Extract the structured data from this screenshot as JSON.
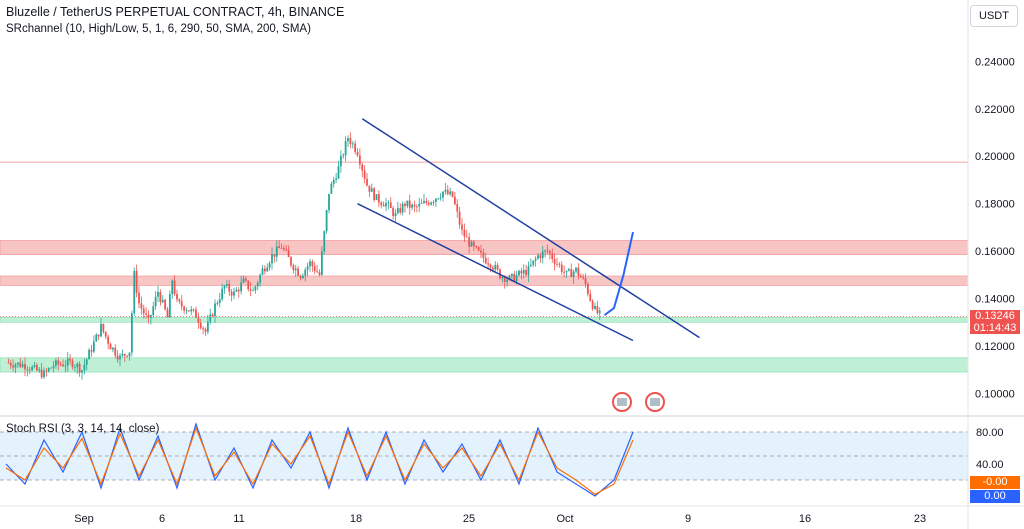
{
  "header": {
    "title": "Bluzelle / TetherUS PERPETUAL CONTRACT, 4h, BINANCE",
    "indicator": "SRchannel (10, High/Low, 5, 1, 6, 290, 50, SMA, 200, SMA)",
    "currency": "USDT"
  },
  "price_tag": {
    "price": "0.13246",
    "countdown": "01:14:43"
  },
  "rsi_panel": {
    "title": "Stoch RSI (3, 3, 14, 14, close)",
    "k_value": "-0.00",
    "d_value": "0.00"
  },
  "colors": {
    "up": "#26a69a",
    "down": "#ef5350",
    "trendline": "#1e3fa0",
    "k_line": "#2962ff",
    "d_line": "#ff6d00",
    "resistance_zone": "#f8c5c5",
    "support_zone": "#bff0d6",
    "rsi_band": "#e3f2fd"
  },
  "chart_data": [
    {
      "type": "candlestick",
      "title": "Bluzelle / TetherUS PERPETUAL CONTRACT, 4h, BINANCE",
      "x_ticks": [
        "Sep",
        "6",
        "11",
        "18",
        "25",
        "Oct",
        "9",
        "16",
        "23"
      ],
      "y_ticks": [
        "0.24000",
        "0.22000",
        "0.20000",
        "0.18000",
        "0.16000",
        "0.14000",
        "0.12000",
        "0.10000"
      ],
      "ylim": [
        0.093,
        0.249
      ],
      "last_price": 0.13246,
      "close_path": [
        [
          0,
          0.113
        ],
        [
          2,
          0.112
        ],
        [
          4,
          0.108
        ],
        [
          5,
          0.112
        ],
        [
          7,
          0.113
        ],
        [
          8,
          0.11
        ],
        [
          9,
          0.119
        ],
        [
          10,
          0.128
        ],
        [
          11,
          0.12
        ],
        [
          12,
          0.115
        ],
        [
          13,
          0.118
        ],
        [
          13.5,
          0.15
        ],
        [
          14,
          0.138
        ],
        [
          15,
          0.13
        ],
        [
          16,
          0.143
        ],
        [
          17,
          0.132
        ],
        [
          17.5,
          0.148
        ],
        [
          18,
          0.138
        ],
        [
          19,
          0.136
        ],
        [
          20,
          0.133
        ],
        [
          21,
          0.126
        ],
        [
          22,
          0.137
        ],
        [
          23,
          0.145
        ],
        [
          24,
          0.142
        ],
        [
          25,
          0.147
        ],
        [
          26,
          0.143
        ],
        [
          27,
          0.152
        ],
        [
          28,
          0.158
        ],
        [
          29,
          0.162
        ],
        [
          30,
          0.155
        ],
        [
          31,
          0.15
        ],
        [
          32,
          0.155
        ],
        [
          33,
          0.15
        ],
        [
          34,
          0.185
        ],
        [
          35,
          0.195
        ],
        [
          36,
          0.208
        ],
        [
          37,
          0.202
        ],
        [
          38,
          0.188
        ],
        [
          39,
          0.182
        ],
        [
          40,
          0.18
        ],
        [
          41,
          0.175
        ],
        [
          42,
          0.18
        ],
        [
          43,
          0.178
        ],
        [
          44,
          0.18
        ],
        [
          45,
          0.182
        ],
        [
          46,
          0.185
        ],
        [
          47,
          0.183
        ],
        [
          48,
          0.168
        ],
        [
          49,
          0.162
        ],
        [
          50,
          0.158
        ],
        [
          51,
          0.155
        ],
        [
          52,
          0.15
        ],
        [
          53,
          0.148
        ],
        [
          54,
          0.15
        ],
        [
          55,
          0.152
        ],
        [
          56,
          0.158
        ],
        [
          57,
          0.16
        ],
        [
          58,
          0.155
        ],
        [
          59,
          0.15
        ],
        [
          60,
          0.152
        ],
        [
          61,
          0.146
        ],
        [
          61.5,
          0.14
        ],
        [
          62,
          0.135
        ],
        [
          62.6,
          0.1325
        ]
      ],
      "zones": [
        {
          "kind": "resistance",
          "from": 0.1585,
          "to": 0.1645
        },
        {
          "kind": "resistance",
          "from": 0.1455,
          "to": 0.1495
        },
        {
          "kind": "support",
          "from": 0.13,
          "to": 0.132
        },
        {
          "kind": "support",
          "from": 0.109,
          "to": 0.115
        }
      ],
      "levels": [
        0.1975
      ],
      "trendlines": [
        {
          "from": [
            37.5,
            0.2158
          ],
          "to": [
            73,
            0.1235
          ]
        },
        {
          "from": [
            37.0,
            0.18
          ],
          "to": [
            66,
            0.1223
          ]
        }
      ],
      "projection": [
        [
          63,
          0.133
        ],
        [
          64,
          0.136
        ],
        [
          65,
          0.15
        ],
        [
          66,
          0.168
        ]
      ]
    },
    {
      "type": "line",
      "title": "Stoch RSI (3, 3, 14, 14, close)",
      "y_ticks": [
        "80.00",
        "40.00"
      ],
      "ylim": [
        -5,
        95
      ],
      "levels": [
        80,
        50,
        20
      ],
      "series": [
        {
          "name": "K",
          "x": [
            0,
            2,
            4,
            6,
            8,
            10,
            12,
            14,
            16,
            18,
            20,
            22,
            24,
            26,
            28,
            30,
            32,
            34,
            36,
            38,
            40,
            42,
            44,
            46,
            48,
            50,
            52,
            54,
            56,
            58,
            60,
            62,
            64,
            66
          ],
          "values": [
            40,
            15,
            70,
            30,
            80,
            10,
            85,
            20,
            75,
            10,
            90,
            20,
            60,
            10,
            70,
            35,
            80,
            10,
            85,
            20,
            80,
            15,
            70,
            30,
            65,
            20,
            70,
            15,
            85,
            30,
            15,
            0,
            20,
            80
          ]
        },
        {
          "name": "D",
          "x": [
            0,
            2,
            4,
            6,
            8,
            10,
            12,
            14,
            16,
            18,
            20,
            22,
            24,
            26,
            28,
            30,
            32,
            34,
            36,
            38,
            40,
            42,
            44,
            46,
            48,
            50,
            52,
            54,
            56,
            58,
            60,
            62,
            64,
            66
          ],
          "values": [
            35,
            20,
            60,
            35,
            72,
            15,
            78,
            25,
            70,
            15,
            85,
            25,
            55,
            15,
            65,
            40,
            75,
            15,
            80,
            25,
            75,
            20,
            65,
            35,
            60,
            25,
            65,
            20,
            80,
            35,
            20,
            2,
            15,
            70
          ]
        }
      ]
    }
  ]
}
